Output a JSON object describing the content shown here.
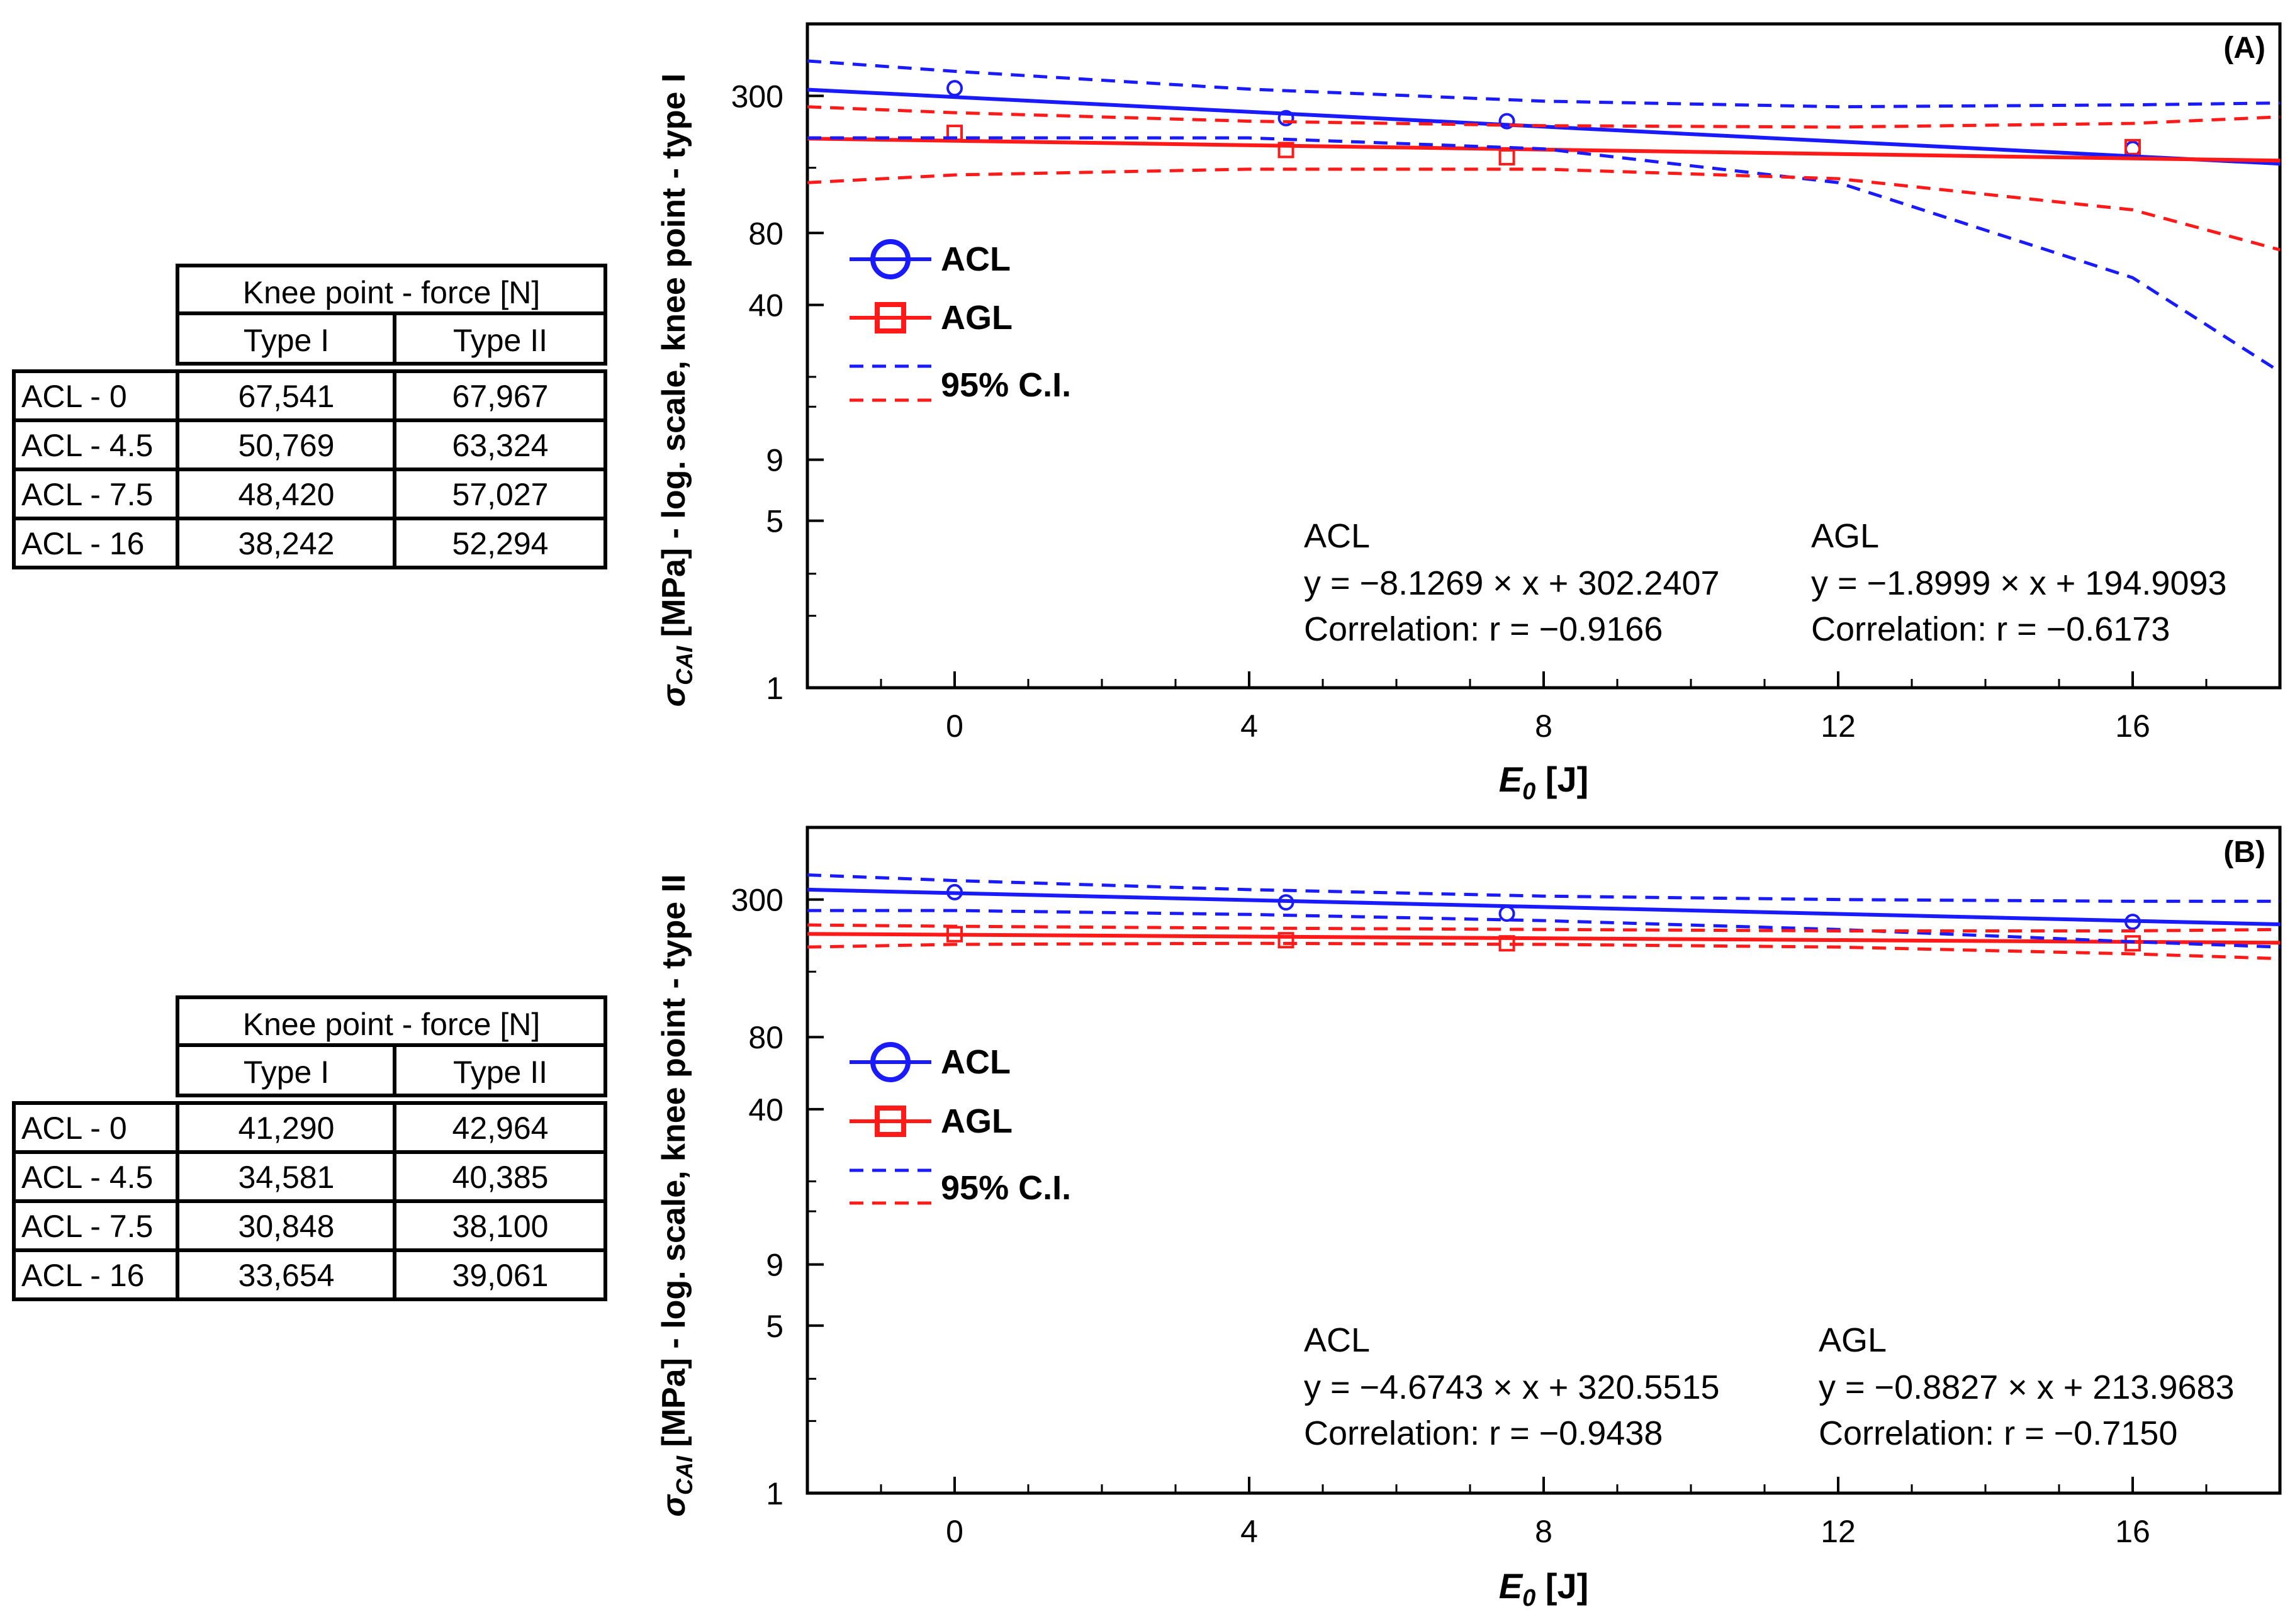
{
  "panels": [
    {
      "id": "A",
      "table": {
        "header": "Knee point - force [N]",
        "columns": [
          "Type I",
          "Type II"
        ],
        "rows": [
          {
            "label": "ACL - 0",
            "values": [
              "67,541",
              "67,967"
            ]
          },
          {
            "label": "ACL - 4.5",
            "values": [
              "50,769",
              "63,324"
            ]
          },
          {
            "label": "ACL - 7.5",
            "values": [
              "48,420",
              "57,027"
            ]
          },
          {
            "label": "ACL - 16",
            "values": [
              "38,242",
              "52,294"
            ]
          }
        ]
      },
      "chart": {
        "label": "(A)",
        "ylabel_prefix": "σ",
        "ylabel_sub": "CAI",
        "ylabel_rest": " [MPa] - log. scale, knee point - type I",
        "xlabel_main": "E",
        "xlabel_sub": "0",
        "xlabel_unit": " [J]",
        "legend": {
          "acl": "ACL",
          "agl": "AGL",
          "ci": "95% C.I."
        },
        "equations": [
          {
            "name": "ACL",
            "eq": "y = −8.1269 × x + 302.2407",
            "corr": "Correlation: r = −0.9166"
          },
          {
            "name": "AGL",
            "eq": "y = −1.8999 × x + 194.9093",
            "corr": "Correlation: r = −0.6173"
          }
        ]
      }
    },
    {
      "id": "B",
      "table": {
        "header": "Knee point - force [N]",
        "columns": [
          "Type I",
          "Type II"
        ],
        "rows": [
          {
            "label": "ACL - 0",
            "values": [
              "41,290",
              "42,964"
            ]
          },
          {
            "label": "ACL - 4.5",
            "values": [
              "34,581",
              "40,385"
            ]
          },
          {
            "label": "ACL - 7.5",
            "values": [
              "30,848",
              "38,100"
            ]
          },
          {
            "label": "ACL - 16",
            "values": [
              "33,654",
              "39,061"
            ]
          }
        ]
      },
      "chart": {
        "label": "(B)",
        "ylabel_prefix": "σ",
        "ylabel_sub": "CAI",
        "ylabel_rest": " [MPa] - log. scale, knee point - type II",
        "xlabel_main": "E",
        "xlabel_sub": "0",
        "xlabel_unit": " [J]",
        "legend": {
          "acl": "ACL",
          "agl": "AGL",
          "ci": "95% C.I."
        },
        "equations": [
          {
            "name": "ACL",
            "eq": "y = −4.6743 × x + 320.5515",
            "corr": "Correlation: r = −0.9438"
          },
          {
            "name": "AGL",
            "eq": "y = −0.8827 × x + 213.9683",
            "corr": "Correlation: r = −0.7150"
          }
        ]
      }
    }
  ],
  "colors": {
    "acl": "#1a1aff",
    "agl": "#ff1a1a",
    "axis": "#000000"
  },
  "chart_data": [
    {
      "type": "scatter",
      "title": "(A)",
      "xlabel": "E0 [J]",
      "ylabel": "σCAI [MPa] - log. scale, knee point - type I",
      "xlim": [
        -2,
        18
      ],
      "ylim": [
        1,
        600
      ],
      "yscale": "log",
      "xticks": [
        0,
        4,
        8,
        12,
        16
      ],
      "yticks": [
        1,
        5,
        9,
        40,
        80,
        300
      ],
      "series": [
        {
          "name": "ACL",
          "x": [
            0,
            4.5,
            7.5,
            16
          ],
          "y": [
            323,
            242,
            235,
            180
          ]
        },
        {
          "name": "AGL",
          "x": [
            0,
            4.5,
            7.5,
            16
          ],
          "y": [
            210,
            178,
            166,
            183
          ]
        },
        {
          "name": "ACL fit",
          "x": [
            -2,
            18
          ],
          "y": [
            318.5,
            156
          ]
        },
        {
          "name": "AGL fit",
          "x": [
            -2,
            18
          ],
          "y": [
            198.7,
            160.7
          ]
        },
        {
          "name": "ACL 95% C.I. upper",
          "x": [
            -2,
            0,
            4,
            8,
            12,
            16,
            18
          ],
          "y": [
            420,
            380,
            320,
            285,
            270,
            275,
            280
          ]
        },
        {
          "name": "ACL 95% C.I. lower",
          "x": [
            -2,
            0,
            4,
            8,
            12,
            16,
            18
          ],
          "y": [
            200,
            200,
            200,
            180,
            130,
            52,
            21
          ]
        },
        {
          "name": "AGL 95% C.I. upper",
          "x": [
            -2,
            0,
            4,
            8,
            12,
            16,
            18
          ],
          "y": [
            270,
            255,
            235,
            225,
            222,
            230,
            245
          ]
        },
        {
          "name": "AGL 95% C.I. lower",
          "x": [
            -2,
            0,
            4,
            8,
            12,
            16,
            18
          ],
          "y": [
            130,
            140,
            148,
            148,
            135,
            100,
            68
          ]
        }
      ]
    },
    {
      "type": "scatter",
      "title": "(B)",
      "xlabel": "E0 [J]",
      "ylabel": "σCAI [MPa] - log. scale, knee point - type II",
      "xlim": [
        -2,
        18
      ],
      "ylim": [
        1,
        600
      ],
      "yscale": "log",
      "xticks": [
        0,
        4,
        8,
        12,
        16
      ],
      "yticks": [
        1,
        5,
        9,
        40,
        80,
        300
      ],
      "series": [
        {
          "name": "ACL",
          "x": [
            0,
            4.5,
            7.5,
            16
          ],
          "y": [
            322,
            292,
            262,
            242
          ]
        },
        {
          "name": "AGL",
          "x": [
            0,
            4.5,
            7.5,
            16
          ],
          "y": [
            215,
            203,
            197,
            197
          ]
        },
        {
          "name": "ACL fit",
          "x": [
            -2,
            18
          ],
          "y": [
            329.9,
            236.4
          ]
        },
        {
          "name": "AGL fit",
          "x": [
            -2,
            18
          ],
          "y": [
            215.7,
            198.1
          ]
        },
        {
          "name": "ACL 95% C.I. upper",
          "x": [
            -2,
            0,
            4,
            8,
            12,
            16,
            18
          ],
          "y": [
            380,
            360,
            330,
            310,
            300,
            295,
            295
          ]
        },
        {
          "name": "ACL 95% C.I. lower",
          "x": [
            -2,
            0,
            4,
            8,
            12,
            16,
            18
          ],
          "y": [
            270,
            270,
            260,
            245,
            225,
            200,
            190
          ]
        },
        {
          "name": "AGL 95% C.I. upper",
          "x": [
            -2,
            0,
            4,
            8,
            12,
            16,
            18
          ],
          "y": [
            235,
            232,
            228,
            225,
            222,
            222,
            225
          ]
        },
        {
          "name": "AGL 95% C.I. lower",
          "x": [
            -2,
            0,
            4,
            8,
            12,
            16,
            18
          ],
          "y": [
            190,
            195,
            197,
            195,
            190,
            178,
            170
          ]
        }
      ]
    }
  ]
}
